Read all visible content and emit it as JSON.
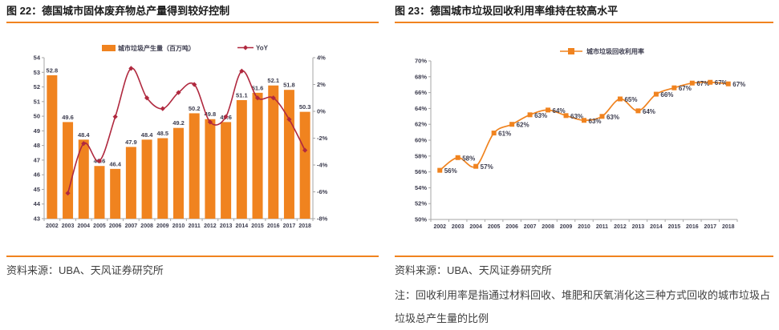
{
  "colors": {
    "orange": "#F0831F",
    "yoy_red": "#B0293F",
    "axis_line": "#A6A6A6",
    "tick_label": "#3C3C4E",
    "data_label": "#3C3C4E",
    "title_text": "#1A1A1A",
    "body_text": "#404040"
  },
  "figure_left": {
    "title": "图 22：德国城市固体废弃物总产量得到较好控制",
    "source": "资料来源：UBA、天风证券研究所"
  },
  "figure_right": {
    "title": "图 23：德国城市垃圾回收利用率维持在较高水平",
    "source": "资料来源：UBA、天风证券研究所",
    "note": "注：回收利用率是指通过材料回收、堆肥和厌氧消化这三种方式回收的城市垃圾占垃圾总产生量的比例"
  },
  "chart_data": [
    {
      "type": "bar",
      "title": "德国城市固体废弃物总产量",
      "categories": [
        "2002",
        "2003",
        "2004",
        "2005",
        "2006",
        "2007",
        "2008",
        "2009",
        "2010",
        "2011",
        "2012",
        "2013",
        "2014",
        "2015",
        "2016",
        "2017",
        "2018"
      ],
      "series": [
        {
          "name": "城市垃圾产生量（百万吨）",
          "type": "bar",
          "axis": "left",
          "values": [
            52.8,
            49.6,
            48.4,
            46.6,
            46.4,
            47.9,
            48.4,
            48.5,
            49.2,
            50.2,
            49.8,
            49.6,
            51.1,
            51.6,
            52.1,
            51.8,
            50.3
          ]
        },
        {
          "name": "YoY",
          "type": "line",
          "axis": "right",
          "values": [
            null,
            -6.1,
            -2.4,
            -3.7,
            -0.4,
            3.2,
            1.0,
            0.2,
            1.4,
            2.0,
            -0.8,
            -0.4,
            3.0,
            1.0,
            1.0,
            -0.6,
            -2.9
          ]
        }
      ],
      "left_axis": {
        "min": 43,
        "max": 54,
        "step": 1
      },
      "right_axis": {
        "min": -8,
        "max": 4,
        "step": 2,
        "suffix": "%"
      },
      "legend_position": "top",
      "grid": false
    },
    {
      "type": "line",
      "title": "德国城市垃圾回收利用率",
      "categories": [
        "2002",
        "2003",
        "2004",
        "2005",
        "2006",
        "2007",
        "2008",
        "2009",
        "2010",
        "2011",
        "2012",
        "2013",
        "2014",
        "2015",
        "2016",
        "2017",
        "2018"
      ],
      "series": [
        {
          "name": "城市垃圾回收利用率",
          "values": [
            56,
            58,
            57,
            61,
            62,
            63,
            64,
            63,
            63,
            63,
            65,
            64,
            66,
            67,
            67,
            67,
            67
          ],
          "labels": [
            "56%",
            "58%",
            "57%",
            "61%",
            "62%",
            "63%",
            "64%",
            "63%",
            "63%",
            "63%",
            "65%",
            "64%",
            "66%",
            "67%",
            "67%",
            "67%",
            "67%"
          ],
          "plot_values": [
            56.2,
            57.8,
            56.7,
            60.9,
            62.0,
            63.2,
            63.8,
            63.1,
            62.5,
            63.0,
            65.2,
            63.7,
            65.8,
            66.6,
            67.2,
            67.3,
            67.1
          ]
        }
      ],
      "y_axis": {
        "min": 50,
        "max": 70,
        "step": 2,
        "suffix": "%"
      },
      "legend_position": "top",
      "grid": false
    }
  ]
}
